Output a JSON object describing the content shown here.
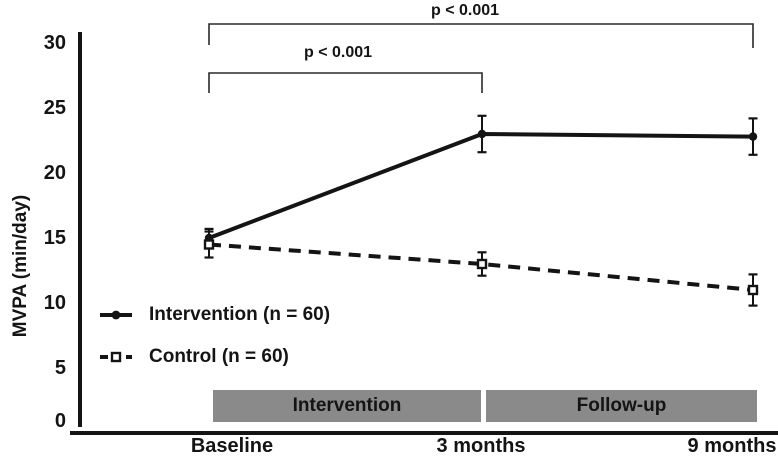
{
  "figure": {
    "ylabel": "MVPA (min/day)",
    "y_ticks": [
      30,
      25,
      20,
      15,
      10,
      5,
      0
    ],
    "phase_bars": [
      {
        "label": "Intervention",
        "span": [
          "Baseline",
          "3 months"
        ]
      },
      {
        "label": "Follow-up",
        "span": [
          "3 months",
          "9 months"
        ]
      }
    ],
    "colors": {
      "ink": "#141414",
      "bar_gray": "#8a8a8a",
      "background": "#ffffff"
    }
  },
  "chart_data": {
    "type": "line",
    "categories": [
      "Baseline",
      "3 months",
      "9 months"
    ],
    "series": [
      {
        "name": "Intervention (n = 60)",
        "values": [
          15,
          23,
          22.8
        ],
        "error_bars": [
          0.7,
          1.4,
          1.4
        ],
        "line_style": "solid",
        "marker": "filled-circle",
        "color": "#141414"
      },
      {
        "name": "Control (n = 60)",
        "values": [
          14.5,
          13,
          11
        ],
        "error_bars": [
          1.0,
          0.9,
          1.2
        ],
        "line_style": "dashed",
        "marker": "open-square",
        "color": "#141414"
      }
    ],
    "ylabel": "MVPA (min/day)",
    "xlabel": "",
    "ylim": [
      0,
      30
    ],
    "y_tick_step": 5,
    "grid": false,
    "legend_position": "lower-left",
    "annotations": [
      {
        "type": "significance-bracket",
        "label": "p < 0.001",
        "between": [
          "Baseline",
          "9 months"
        ]
      },
      {
        "type": "significance-bracket",
        "label": "p < 0.001",
        "between": [
          "Baseline",
          "3 months"
        ]
      }
    ]
  }
}
